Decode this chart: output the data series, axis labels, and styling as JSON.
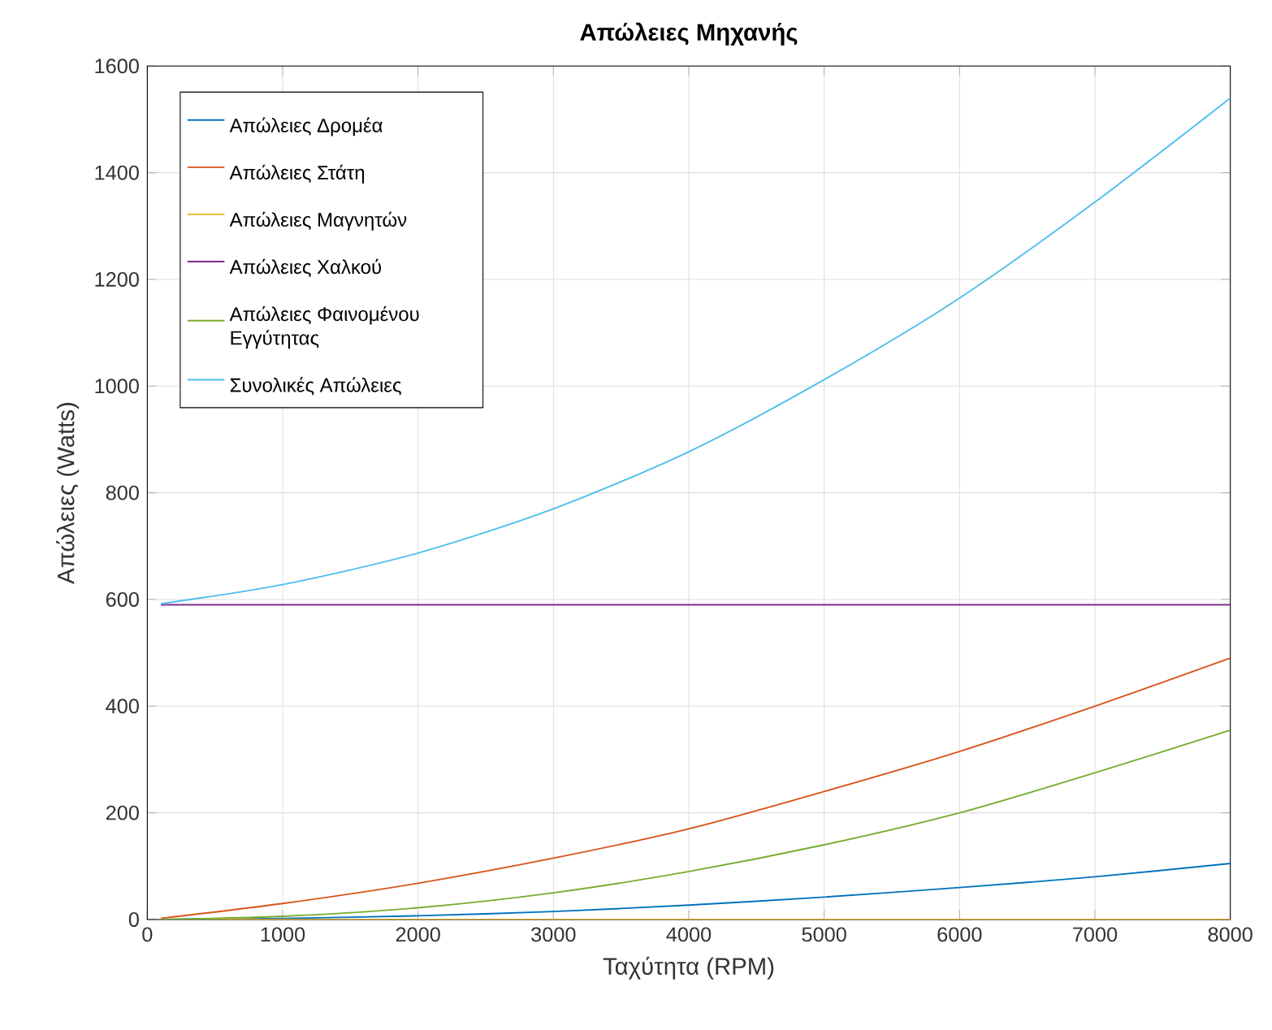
{
  "chart_data": {
    "type": "line",
    "title": "Απώλειες Μηχανής",
    "xlabel": "Ταχύτητα (RPM)",
    "ylabel": "Απώλειες (Watts)",
    "x": [
      100,
      1000,
      2000,
      3000,
      4000,
      5000,
      6000,
      7000,
      8000
    ],
    "series": [
      {
        "name": "Απώλειες Δρομέα",
        "color": "#0072bd",
        "values": [
          0,
          2,
          7,
          15,
          27,
          42,
          60,
          80,
          105
        ]
      },
      {
        "name": "Απώλειες Στάτη",
        "color": "#d95319",
        "values": [
          2,
          30,
          68,
          115,
          170,
          240,
          315,
          400,
          490
        ]
      },
      {
        "name": "Απώλειες Μαγνητών",
        "color": "#edb120",
        "values": [
          0,
          0,
          0,
          0,
          0,
          0,
          0,
          0,
          0
        ]
      },
      {
        "name": "Απώλειες Χαλκού",
        "color": "#7e2f8e",
        "values": [
          590,
          590,
          590,
          590,
          590,
          590,
          590,
          590,
          590
        ]
      },
      {
        "name": "Απώλειες Φαινομένου Εγγύτητας",
        "color": "#77ac30",
        "values": [
          0,
          6,
          22,
          50,
          90,
          140,
          200,
          275,
          355
        ]
      },
      {
        "name": "Συνολικές Απώλειες",
        "color": "#4dbeee",
        "values": [
          592,
          628,
          687,
          770,
          877,
          1012,
          1165,
          1345,
          1540
        ]
      }
    ],
    "xlim": [
      0,
      8000
    ],
    "ylim": [
      0,
      1600
    ],
    "xticks": [
      0,
      1000,
      2000,
      3000,
      4000,
      5000,
      6000,
      7000,
      8000
    ],
    "yticks": [
      0,
      200,
      400,
      600,
      800,
      1000,
      1200,
      1400,
      1600
    ],
    "grid": true,
    "legend": "top left",
    "marker": "none",
    "line_style": "solid"
  }
}
